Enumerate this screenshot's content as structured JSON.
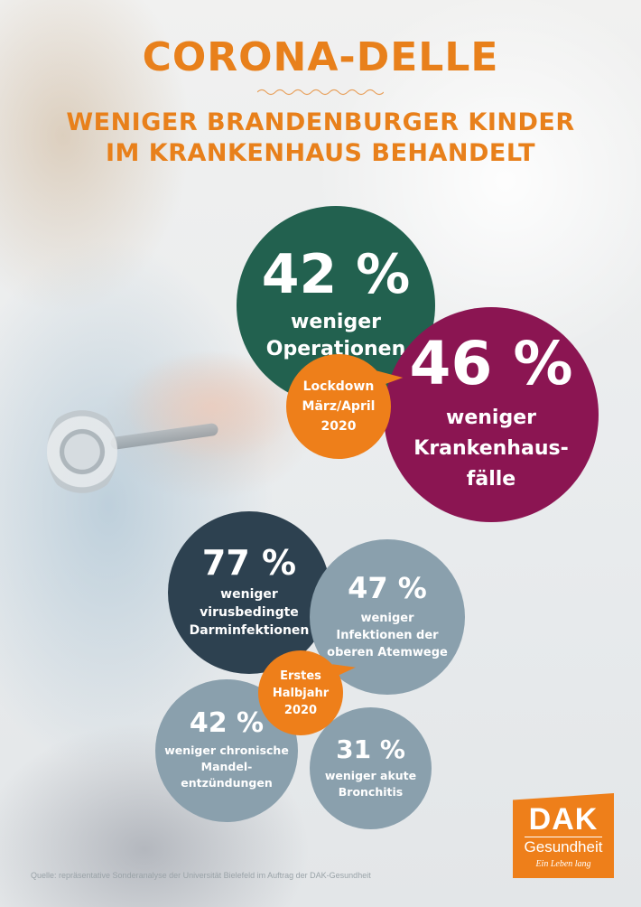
{
  "header": {
    "title": "CORONA-DELLE",
    "subtitle_line1": "WENIGER BRANDENBURGER KINDER",
    "subtitle_line2": "IM KRANKENHAUS BEHANDELT"
  },
  "lockdown": {
    "operationen": {
      "percent": "42 %",
      "line1": "weniger",
      "line2": "Operationen"
    },
    "krankenhausfaelle": {
      "percent": "46 %",
      "line1": "weniger",
      "line2": "Krankenhaus-",
      "line3": "fälle"
    },
    "label": {
      "line1": "Lockdown",
      "line2": "März/April",
      "line3": "2020"
    }
  },
  "halbjahr": {
    "darm": {
      "percent": "77 %",
      "line1": "weniger",
      "line2": "virusbedingte",
      "line3": "Darminfektionen"
    },
    "atemwege": {
      "percent": "47 %",
      "line1": "weniger",
      "line2": "Infektionen der",
      "line3": "oberen Atemwege"
    },
    "label": {
      "line1": "Erstes",
      "line2": "Halbjahr",
      "line3": "2020"
    },
    "mandel": {
      "percent": "42 %",
      "line1": "weniger chronische",
      "line2": "Mandel-",
      "line3": "entzündungen"
    },
    "bronchitis": {
      "percent": "31 %",
      "line1": "weniger akute",
      "line2": "Bronchitis"
    }
  },
  "source": "Quelle: repräsentative Sonderanalyse der Universität Bielefeld im Auftrag der DAK-Gesundheit",
  "logo": {
    "brand": "DAK",
    "name": "Gesundheit",
    "slogan": "Ein Leben lang"
  },
  "colors": {
    "orange": "#ee7f1a",
    "green": "#22614f",
    "purple": "#8b1552",
    "navy": "#2d4150",
    "grey_blue": "#8aa0ad"
  }
}
